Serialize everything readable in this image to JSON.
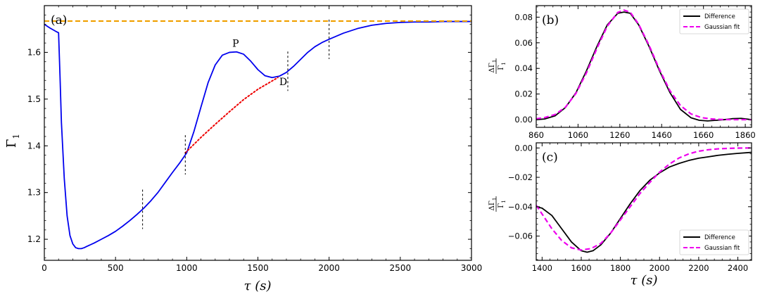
{
  "chart_data": [
    {
      "panel": "(a)",
      "type": "line",
      "xlabel": "τ (s)",
      "ylabel": "Γ₁",
      "ylabel_main": "Γ",
      "ylabel_sub": "1",
      "xlim": [
        0,
        3000
      ],
      "ylim": [
        1.155,
        1.7
      ],
      "xticks": [
        0,
        500,
        1000,
        1500,
        2000,
        2500,
        3000
      ],
      "yticks": [
        1.2,
        1.3,
        1.4,
        1.5,
        1.6
      ],
      "series": [
        {
          "color": "#0000ee",
          "style": "solid",
          "x": [
            0,
            40,
            80,
            100,
            110,
            120,
            140,
            160,
            180,
            200,
            220,
            240,
            260,
            280,
            300,
            350,
            400,
            450,
            500,
            550,
            600,
            650,
            700,
            750,
            800,
            850,
            900,
            950,
            1000,
            1050,
            1100,
            1150,
            1200,
            1250,
            1300,
            1350,
            1400,
            1450,
            1500,
            1550,
            1600,
            1650,
            1700,
            1750,
            1800,
            1850,
            1900,
            1950,
            2000,
            2100,
            2200,
            2300,
            2400,
            2500,
            2600,
            2700,
            2800,
            2900,
            3000
          ],
          "y": [
            1.66,
            1.652,
            1.645,
            1.642,
            1.55,
            1.45,
            1.33,
            1.25,
            1.208,
            1.19,
            1.182,
            1.18,
            1.18,
            1.182,
            1.185,
            1.192,
            1.2,
            1.208,
            1.217,
            1.228,
            1.24,
            1.253,
            1.267,
            1.283,
            1.301,
            1.322,
            1.343,
            1.363,
            1.385,
            1.43,
            1.483,
            1.535,
            1.573,
            1.594,
            1.6,
            1.601,
            1.596,
            1.581,
            1.563,
            1.55,
            1.546,
            1.549,
            1.557,
            1.57,
            1.585,
            1.6,
            1.612,
            1.621,
            1.628,
            1.641,
            1.651,
            1.658,
            1.662,
            1.664,
            1.665,
            1.665,
            1.666,
            1.666,
            1.666
          ]
        },
        {
          "color": "#ee0000",
          "style": "dotted",
          "x": [
            990,
            1100,
            1200,
            1300,
            1400,
            1500,
            1640
          ],
          "y": [
            1.385,
            1.418,
            1.446,
            1.473,
            1.499,
            1.521,
            1.546
          ]
        },
        {
          "color": "#f0a000",
          "style": "dashed",
          "x": [
            0,
            3000
          ],
          "y": [
            1.667,
            1.667
          ]
        }
      ],
      "markers_x": [
        690,
        990,
        1710,
        2000
      ],
      "annotations": [
        {
          "text": "P",
          "x": 1320,
          "y": 1.612
        },
        {
          "text": "D",
          "x": 1650,
          "y": 1.53
        }
      ]
    },
    {
      "panel": "(b)",
      "type": "line",
      "ylabel_num": "ΔΓ",
      "ylabel_den": "Γ",
      "ylabel_sub": "1",
      "xlim": [
        860,
        1890
      ],
      "ylim": [
        -0.006,
        0.089
      ],
      "xticks": [
        860,
        1060,
        1260,
        1460,
        1660,
        1860
      ],
      "yticks": [
        0.0,
        0.02,
        0.04,
        0.06,
        0.08
      ],
      "ytick_labels": [
        "0.00",
        "0.02",
        "0.04",
        "0.06",
        "0.08"
      ],
      "legend": {
        "placement": "top-right",
        "entries": [
          "Difference",
          "Gaussian fit"
        ]
      },
      "series": [
        {
          "name": "Difference",
          "color": "#000000",
          "style": "solid",
          "x": [
            860,
            900,
            950,
            1000,
            1050,
            1100,
            1150,
            1200,
            1250,
            1280,
            1310,
            1350,
            1400,
            1450,
            1500,
            1550,
            1600,
            1640,
            1680,
            1720,
            1760,
            1800,
            1840,
            1890
          ],
          "y": [
            0.0,
            0.0005,
            0.003,
            0.0095,
            0.021,
            0.038,
            0.057,
            0.074,
            0.083,
            0.084,
            0.083,
            0.074,
            0.057,
            0.038,
            0.021,
            0.008,
            0.0015,
            -0.0005,
            -0.001,
            -0.0005,
            0.0,
            0.0008,
            0.001,
            0.0
          ]
        },
        {
          "name": "Gaussian fit",
          "color": "#ee00ee",
          "style": "dashed",
          "x": [
            860,
            900,
            950,
            1000,
            1050,
            1100,
            1150,
            1200,
            1250,
            1280,
            1310,
            1350,
            1400,
            1450,
            1500,
            1550,
            1600,
            1650,
            1700,
            1750,
            1800,
            1850,
            1890
          ],
          "y": [
            0.0007,
            0.0016,
            0.004,
            0.0098,
            0.0205,
            0.0365,
            0.0555,
            0.073,
            0.0837,
            0.0855,
            0.0838,
            0.0745,
            0.058,
            0.039,
            0.0225,
            0.011,
            0.0045,
            0.0016,
            0.0005,
            0.0001,
            0.0,
            0.0,
            0.0
          ]
        }
      ]
    },
    {
      "panel": "(c)",
      "type": "line",
      "xlabel": "τ (s)",
      "ylabel_num": "ΔΓ",
      "ylabel_den": "Γ",
      "ylabel_sub": "1",
      "xlim": [
        1370,
        2470
      ],
      "ylim": [
        -0.0765,
        0.0035
      ],
      "xticks": [
        1400,
        1600,
        1800,
        2000,
        2200,
        2400
      ],
      "yticks": [
        0.0,
        -0.02,
        -0.04,
        -0.06
      ],
      "ytick_labels": [
        "0.00",
        "−0.02",
        "−0.04",
        "−0.06"
      ],
      "legend": {
        "placement": "bottom-right",
        "entries": [
          "Difference",
          "Gaussian fit"
        ]
      },
      "series": [
        {
          "name": "Difference",
          "color": "#000000",
          "style": "solid",
          "x": [
            1370,
            1400,
            1450,
            1500,
            1550,
            1600,
            1630,
            1660,
            1700,
            1750,
            1800,
            1850,
            1900,
            1950,
            2000,
            2050,
            2100,
            2150,
            2200,
            2250,
            2300,
            2350,
            2400,
            2470
          ],
          "y": [
            -0.04,
            -0.041,
            -0.046,
            -0.055,
            -0.064,
            -0.07,
            -0.071,
            -0.07,
            -0.066,
            -0.058,
            -0.048,
            -0.038,
            -0.029,
            -0.022,
            -0.017,
            -0.013,
            -0.0105,
            -0.0085,
            -0.007,
            -0.006,
            -0.005,
            -0.0043,
            -0.0037,
            -0.003
          ]
        },
        {
          "name": "Gaussian fit",
          "color": "#ee00ee",
          "style": "dashed",
          "x": [
            1370,
            1400,
            1450,
            1500,
            1550,
            1600,
            1650,
            1700,
            1750,
            1800,
            1850,
            1900,
            1950,
            2000,
            2050,
            2100,
            2150,
            2200,
            2250,
            2300,
            2350,
            2400,
            2470
          ],
          "y": [
            -0.039,
            -0.045,
            -0.055,
            -0.063,
            -0.068,
            -0.0695,
            -0.0685,
            -0.065,
            -0.058,
            -0.049,
            -0.04,
            -0.031,
            -0.0235,
            -0.0165,
            -0.011,
            -0.0068,
            -0.004,
            -0.0022,
            -0.0012,
            -0.0006,
            -0.0003,
            -0.0001,
            0.0
          ]
        }
      ]
    }
  ]
}
